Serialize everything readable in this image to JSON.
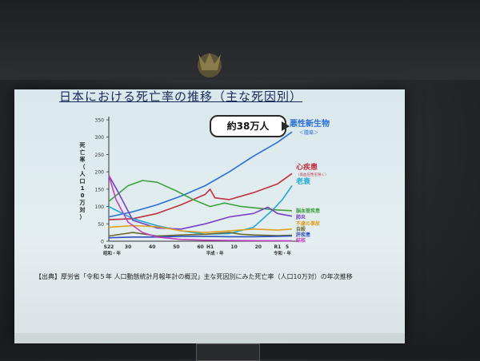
{
  "slide": {
    "title": "日本における死亡率の推移（主な死因別）",
    "callout": "約38万人",
    "source": "【出典】厚労省「令和５年 人口動態統計月報年計の概況」主な死因別にみた死亡率（人口10万対）の年次推移"
  },
  "chart_data": {
    "type": "line",
    "ylabel": "死亡率（人口10万対）",
    "ylim": [
      0,
      350
    ],
    "yticks": [
      "0",
      "50",
      "100",
      "150",
      "200",
      "250",
      "300",
      "350"
    ],
    "xticks": [
      "S22",
      "30",
      "40",
      "50",
      "60",
      "H1",
      "10",
      "20",
      "R1",
      "5"
    ],
    "xtick_sub": [
      "昭和・年",
      "平成・年",
      "令和・年"
    ],
    "series": [
      {
        "name": "悪性新生物",
        "sub": "＜腫瘍＞",
        "color": "#2a6fd6",
        "values": [
          [
            0,
            70
          ],
          [
            10,
            85
          ],
          [
            20,
            105
          ],
          [
            30,
            130
          ],
          [
            40,
            160
          ],
          [
            50,
            200
          ],
          [
            60,
            245
          ],
          [
            70,
            285
          ],
          [
            76,
            315
          ]
        ]
      },
      {
        "name": "心疾患",
        "sub": "（高血圧性を除く）",
        "color": "#c03040",
        "values": [
          [
            0,
            62
          ],
          [
            10,
            65
          ],
          [
            20,
            80
          ],
          [
            30,
            105
          ],
          [
            40,
            135
          ],
          [
            42,
            150
          ],
          [
            44,
            125
          ],
          [
            50,
            120
          ],
          [
            60,
            140
          ],
          [
            70,
            165
          ],
          [
            76,
            195
          ]
        ]
      },
      {
        "name": "老衰",
        "color": "#23a8d8",
        "values": [
          [
            0,
            100
          ],
          [
            10,
            65
          ],
          [
            20,
            45
          ],
          [
            30,
            30
          ],
          [
            40,
            20
          ],
          [
            50,
            22
          ],
          [
            60,
            40
          ],
          [
            68,
            90
          ],
          [
            72,
            120
          ],
          [
            76,
            160
          ]
        ]
      },
      {
        "name": "脳血管疾患",
        "color": "#40a040",
        "values": [
          [
            0,
            115
          ],
          [
            8,
            160
          ],
          [
            14,
            175
          ],
          [
            20,
            170
          ],
          [
            28,
            145
          ],
          [
            35,
            120
          ],
          [
            42,
            100
          ],
          [
            48,
            110
          ],
          [
            55,
            100
          ],
          [
            62,
            95
          ],
          [
            70,
            90
          ],
          [
            76,
            88
          ]
        ]
      },
      {
        "name": "肺炎",
        "color": "#7a40c8",
        "values": [
          [
            0,
            190
          ],
          [
            4,
            140
          ],
          [
            10,
            60
          ],
          [
            20,
            38
          ],
          [
            30,
            35
          ],
          [
            40,
            50
          ],
          [
            50,
            70
          ],
          [
            60,
            80
          ],
          [
            66,
            98
          ],
          [
            70,
            80
          ],
          [
            76,
            72
          ]
        ]
      },
      {
        "name": "不慮の事故",
        "color": "#e0a020",
        "values": [
          [
            0,
            40
          ],
          [
            10,
            45
          ],
          [
            20,
            42
          ],
          [
            30,
            30
          ],
          [
            40,
            25
          ],
          [
            50,
            30
          ],
          [
            60,
            35
          ],
          [
            70,
            32
          ],
          [
            76,
            35
          ]
        ]
      },
      {
        "name": "自殺",
        "color": "#6a6a30",
        "values": [
          [
            0,
            15
          ],
          [
            10,
            25
          ],
          [
            20,
            15
          ],
          [
            30,
            18
          ],
          [
            40,
            20
          ],
          [
            50,
            25
          ],
          [
            55,
            20
          ],
          [
            60,
            18
          ],
          [
            70,
            16
          ],
          [
            76,
            17
          ]
        ]
      },
      {
        "name": "肝疾患",
        "color": "#3050c0",
        "values": [
          [
            0,
            10
          ],
          [
            10,
            12
          ],
          [
            20,
            12
          ],
          [
            30,
            14
          ],
          [
            40,
            14
          ],
          [
            50,
            13
          ],
          [
            60,
            13
          ],
          [
            70,
            14
          ],
          [
            76,
            15
          ]
        ]
      },
      {
        "name": "結核",
        "color": "#c040c0",
        "values": [
          [
            0,
            190
          ],
          [
            3,
            120
          ],
          [
            8,
            55
          ],
          [
            14,
            25
          ],
          [
            20,
            12
          ],
          [
            30,
            5
          ],
          [
            40,
            3
          ],
          [
            50,
            2
          ],
          [
            60,
            1.5
          ],
          [
            76,
            1
          ]
        ]
      }
    ]
  }
}
